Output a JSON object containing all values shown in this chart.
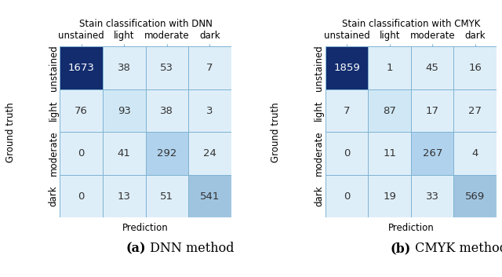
{
  "dnn": {
    "title": "Stain classification with DNN",
    "matrix": [
      [
        1673,
        38,
        53,
        7
      ],
      [
        76,
        93,
        38,
        3
      ],
      [
        0,
        41,
        292,
        24
      ],
      [
        0,
        13,
        51,
        541
      ]
    ],
    "caption_bold": "(a)",
    "caption_rest": " DNN method"
  },
  "cmyk": {
    "title": "Stain classification with CMYK",
    "matrix": [
      [
        1859,
        1,
        45,
        16
      ],
      [
        7,
        87,
        17,
        27
      ],
      [
        0,
        11,
        267,
        4
      ],
      [
        0,
        19,
        33,
        569
      ]
    ],
    "caption_bold": "(b)",
    "caption_rest": " CMYK method"
  },
  "classes": [
    "unstained",
    "light",
    "moderate",
    "dark"
  ],
  "xlabel": "Prediction",
  "ylabel": "Ground truth",
  "diag_colors": [
    "#122c6e",
    "#d0e8f5",
    "#b0d2ed",
    "#9fc4e0"
  ],
  "offdiag_color": "#deeef8",
  "border_color": "#7fb3d3",
  "text_white": "#ffffff",
  "text_dark": "#333333",
  "background": "#ffffff",
  "cell_fontsize": 9.5,
  "tick_fontsize": 8.5,
  "title_fontsize": 8.5,
  "xlabel_fontsize": 8.5,
  "ylabel_fontsize": 8.5,
  "caption_fontsize": 11.5
}
